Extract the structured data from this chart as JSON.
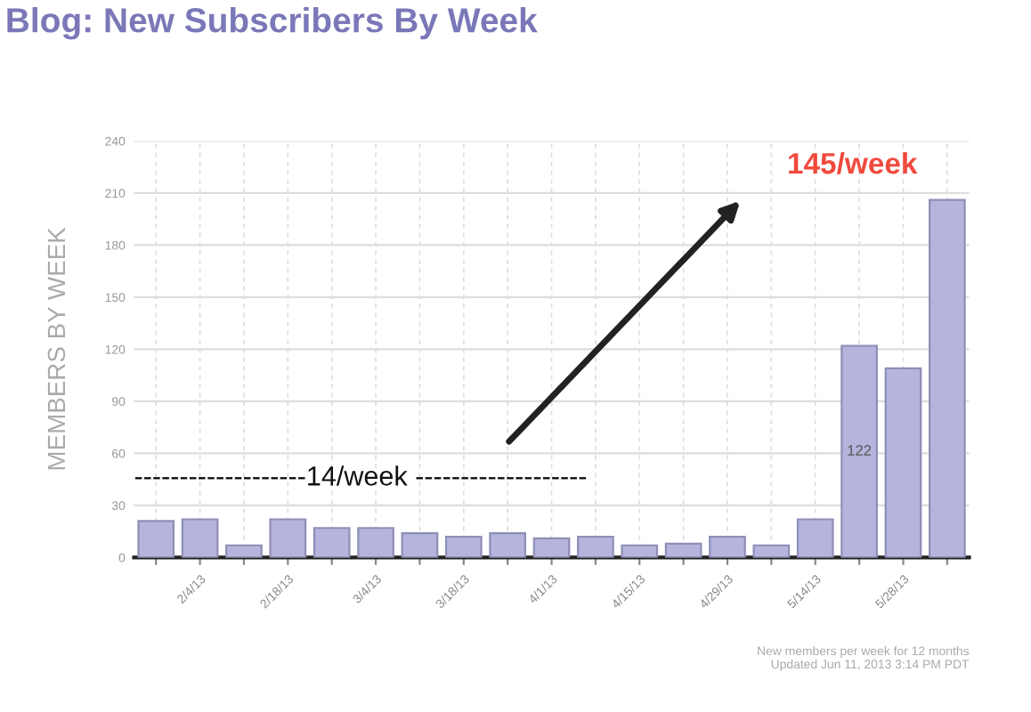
{
  "chart_data": {
    "type": "bar",
    "title": "Blog: New Subscribers By Week",
    "ylabel": "MEMBERS BY WEEK",
    "categories": [
      null,
      "2/4/13",
      null,
      "2/18/13",
      null,
      "3/4/13",
      null,
      "3/18/13",
      null,
      "4/1/13",
      null,
      "4/15/13",
      null,
      "4/29/13",
      null,
      "5/14/13",
      null,
      "5/28/13",
      null
    ],
    "values": [
      21,
      22,
      7,
      22,
      17,
      17,
      14,
      12,
      14,
      11,
      12,
      7,
      8,
      12,
      7,
      22,
      122,
      109,
      206
    ],
    "value_labels": [
      null,
      null,
      null,
      null,
      null,
      null,
      null,
      null,
      null,
      null,
      null,
      null,
      null,
      null,
      null,
      null,
      "122",
      null,
      null
    ],
    "color": "#b4b4dc",
    "ylim": [
      0,
      240
    ],
    "yticks": [
      0,
      30,
      60,
      90,
      120,
      150,
      180,
      210,
      240
    ],
    "grid": true,
    "annotations": [
      "-------------------14/week -------------------",
      "145/week",
      "New members per week for 12 months\nUpdated Jun 11, 2013 3:14 PM PDT"
    ]
  }
}
